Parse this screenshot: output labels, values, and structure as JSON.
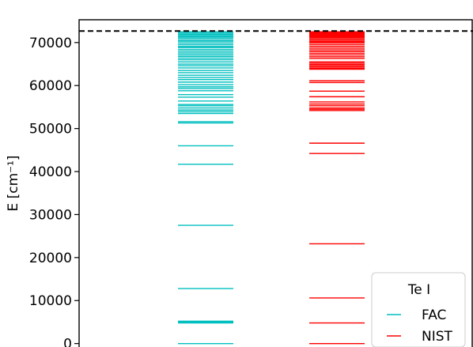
{
  "chart_data": {
    "type": "scatter",
    "ylabel": "E [cm⁻¹]",
    "ylim": [
      -800,
      75300
    ],
    "y_ticks": [
      {
        "value": 0,
        "label": "0"
      },
      {
        "value": 10000,
        "label": "10000"
      },
      {
        "value": 20000,
        "label": "20000"
      },
      {
        "value": 30000,
        "label": "30000"
      },
      {
        "value": 40000,
        "label": "40000"
      },
      {
        "value": 50000,
        "label": "50000"
      },
      {
        "value": 60000,
        "label": "60000"
      },
      {
        "value": 70000,
        "label": "70000"
      }
    ],
    "reference_line": {
      "value": 72670,
      "style": "dashed",
      "color": "#000000"
    },
    "legend": {
      "title": "Te I",
      "placement": "bottom-right"
    },
    "series": [
      {
        "name": "FAC",
        "color": "#00bfbf",
        "column": 1,
        "levels": [
          0,
          4800,
          5000,
          5200,
          12800,
          27500,
          41700,
          46000,
          51300,
          51600,
          53500,
          53900,
          54300,
          54800,
          55300,
          55600,
          56400,
          57300,
          57900,
          58800,
          59300,
          59700,
          60200,
          60800,
          61400,
          61900,
          62400,
          63000,
          63500,
          64100,
          64600,
          65000,
          65500,
          66000,
          66400,
          66800,
          67200,
          67600,
          68000,
          68400,
          68800,
          69100,
          69500,
          69900,
          70300,
          70600,
          71000,
          71300,
          71600,
          71900,
          72200,
          72500
        ]
      },
      {
        "name": "NIST",
        "color": "#ff0000",
        "column": 2,
        "levels": [
          0,
          4800,
          10600,
          23200,
          44200,
          46600,
          54200,
          54500,
          54800,
          55300,
          55700,
          56200,
          57400,
          58700,
          60700,
          61100,
          63800,
          64000,
          64300,
          64600,
          64900,
          65200,
          65500,
          66300,
          66700,
          67100,
          67500,
          67900,
          68300,
          68700,
          69100,
          69500,
          69900,
          70200,
          70500,
          70800,
          71100,
          71300,
          71500,
          71700,
          71900,
          72100,
          72300,
          72500
        ]
      }
    ]
  }
}
